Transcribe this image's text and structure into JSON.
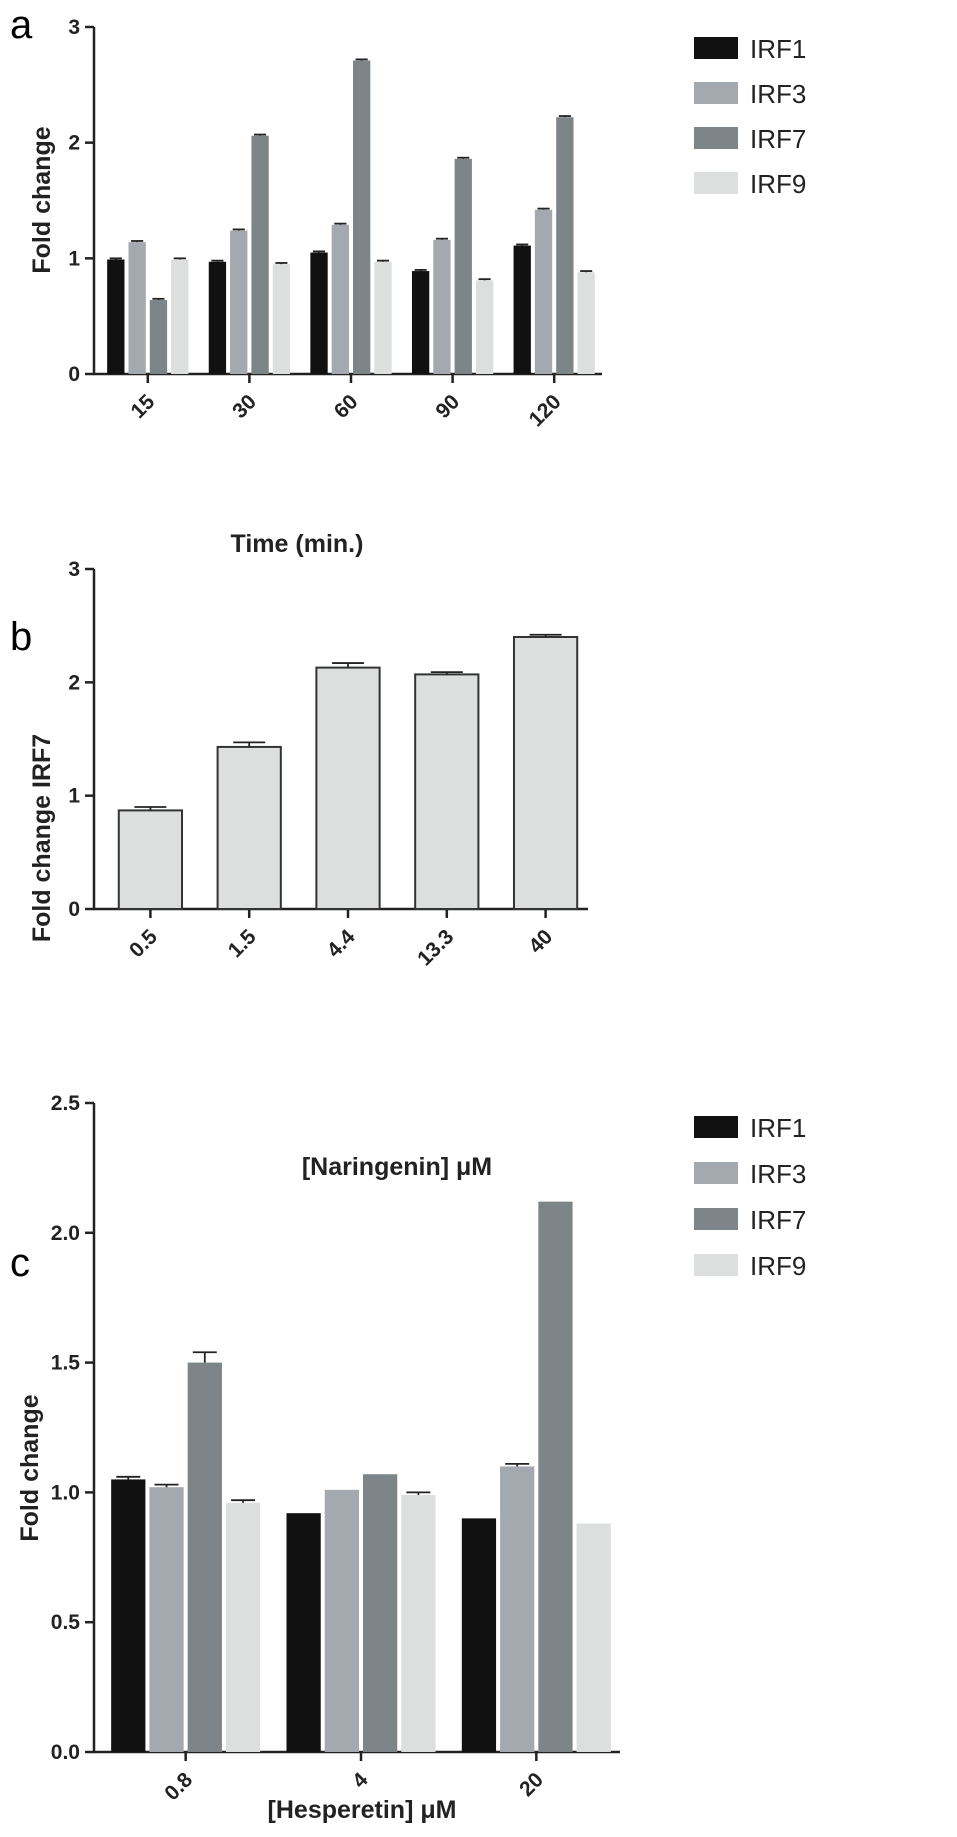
{
  "chart_data": [
    {
      "panel": "a",
      "type": "bar",
      "categories": [
        "15",
        "30",
        "60",
        "90",
        "120"
      ],
      "xlabel": "Time (min.)",
      "ylabel": "Fold change",
      "ylim": [
        0,
        3
      ],
      "yticks": [
        "0",
        "1",
        "2",
        "3"
      ],
      "legend": "right",
      "series": [
        {
          "name": "IRF1",
          "color": "#111111",
          "values": [
            0.99,
            0.97,
            1.05,
            0.89,
            1.11
          ],
          "errors": [
            0.01,
            0.01,
            0.01,
            0.01,
            0.01
          ]
        },
        {
          "name": "IRF3",
          "color": "#a3a9ae",
          "values": [
            1.14,
            1.24,
            1.29,
            1.16,
            1.42
          ],
          "errors": [
            0.01,
            0.01,
            0.01,
            0.01,
            0.01
          ]
        },
        {
          "name": "IRF7",
          "color": "#7d8588",
          "values": [
            0.64,
            2.06,
            2.71,
            1.86,
            2.22
          ],
          "errors": [
            0.01,
            0.01,
            0.01,
            0.01,
            0.01
          ]
        },
        {
          "name": "IRF9",
          "color": "#dcdfde",
          "values": [
            0.99,
            0.95,
            0.97,
            0.81,
            0.88
          ],
          "errors": [
            0.01,
            0.01,
            0.01,
            0.01,
            0.01
          ]
        }
      ]
    },
    {
      "panel": "b",
      "type": "bar",
      "categories": [
        "0.5",
        "1.5",
        "4.4",
        "13.3",
        "40"
      ],
      "xlabel": "[Naringenin] μM",
      "ylabel": "Fold change IRF7",
      "ylim": [
        0,
        3
      ],
      "yticks": [
        "0",
        "1",
        "2",
        "3"
      ],
      "series": [
        {
          "name": "",
          "color": "#dcdfde",
          "outline": "#333333",
          "values": [
            0.87,
            1.43,
            2.13,
            2.07,
            2.4
          ],
          "errors": [
            0.03,
            0.04,
            0.04,
            0.02,
            0.02
          ]
        }
      ]
    },
    {
      "panel": "c",
      "type": "bar",
      "categories": [
        "0.8",
        "4",
        "20"
      ],
      "xlabel": "[Hesperetin] μM",
      "ylabel": "Fold change",
      "ylim": [
        0,
        2.5
      ],
      "yticks": [
        "0.0",
        "0.5",
        "1.0",
        "1.5",
        "2.0",
        "2.5"
      ],
      "legend": "right",
      "series": [
        {
          "name": "IRF1",
          "color": "#111111",
          "values": [
            1.05,
            0.92,
            0.9
          ],
          "errors": [
            0.01,
            0.0,
            0.0
          ]
        },
        {
          "name": "IRF3",
          "color": "#a3a9ae",
          "values": [
            1.02,
            1.01,
            1.1
          ],
          "errors": [
            0.01,
            0.0,
            0.01
          ]
        },
        {
          "name": "IRF7",
          "color": "#7d8588",
          "values": [
            1.5,
            1.07,
            2.12
          ],
          "errors": [
            0.04,
            0.0,
            0.0
          ]
        },
        {
          "name": "IRF9",
          "color": "#dcdfde",
          "values": [
            0.96,
            0.99,
            0.88
          ],
          "errors": [
            0.01,
            0.01,
            0.0
          ]
        }
      ]
    }
  ]
}
